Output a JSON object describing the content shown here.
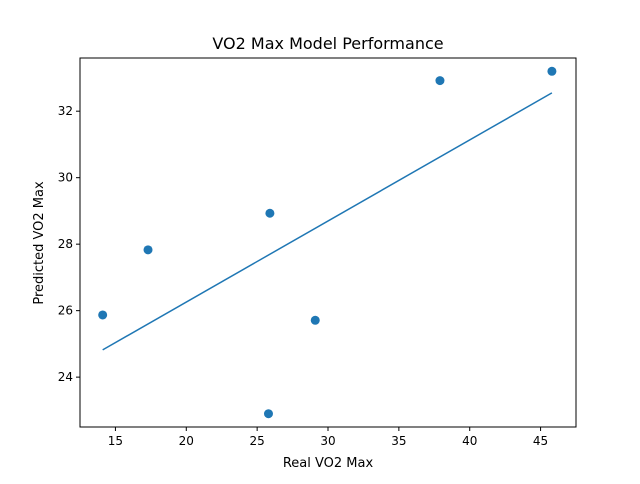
{
  "chart_data": {
    "type": "scatter",
    "title": "VO2 Max Model Performance",
    "xlabel": "Real VO2 Max",
    "ylabel": "Predicted VO2 Max",
    "xlim": [
      12.5,
      47.5
    ],
    "ylim": [
      22.5,
      33.6
    ],
    "xticks": [
      15,
      20,
      25,
      30,
      35,
      40,
      45
    ],
    "yticks": [
      24,
      26,
      28,
      30,
      32
    ],
    "grid": false,
    "legend": "none",
    "series": [
      {
        "type": "scatter",
        "color": "#1f77b4",
        "points": [
          {
            "x": 14.1,
            "y": 25.87
          },
          {
            "x": 17.3,
            "y": 27.83
          },
          {
            "x": 25.9,
            "y": 28.93
          },
          {
            "x": 25.8,
            "y": 22.9
          },
          {
            "x": 29.1,
            "y": 25.71
          },
          {
            "x": 37.9,
            "y": 32.92
          },
          {
            "x": 45.8,
            "y": 33.2
          }
        ]
      },
      {
        "type": "line",
        "color": "#1f77b4",
        "points": [
          {
            "x": 14.1,
            "y": 24.82
          },
          {
            "x": 45.8,
            "y": 32.55
          }
        ]
      }
    ]
  }
}
